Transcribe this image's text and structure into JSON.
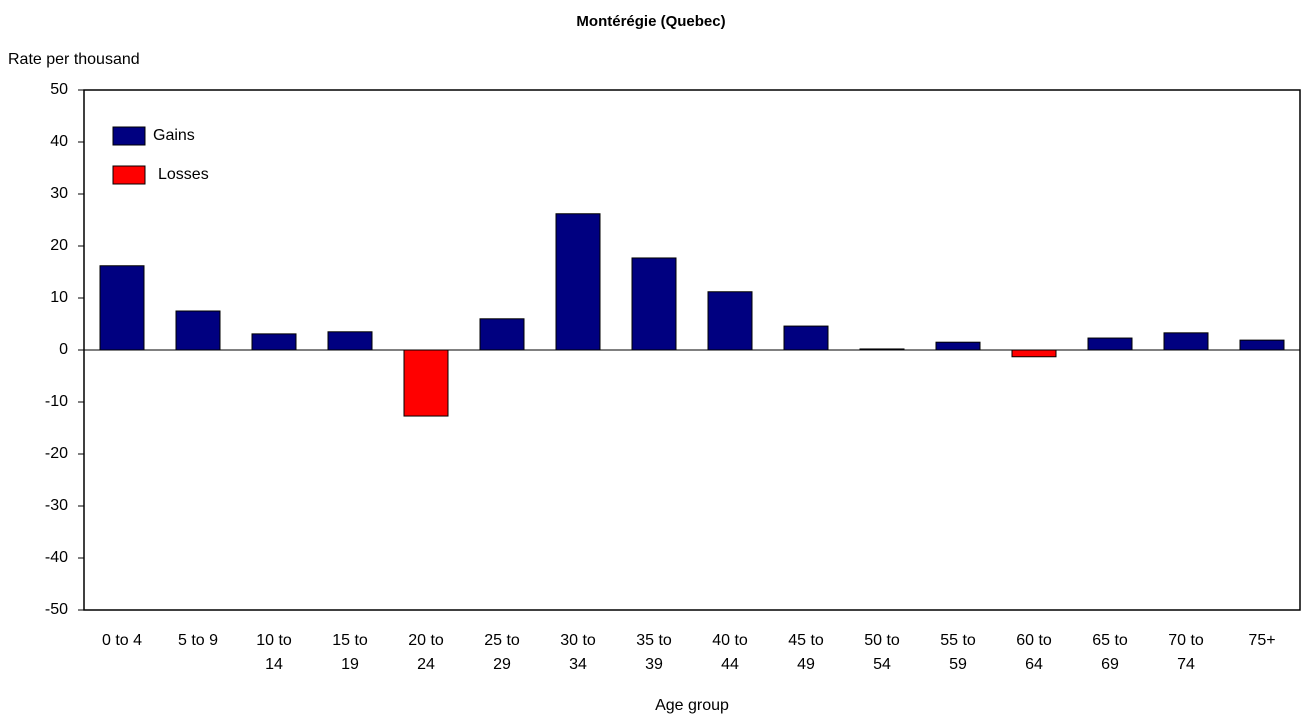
{
  "chart_data": {
    "type": "bar",
    "title": "Montérégie (Quebec)",
    "y_label": "Rate per thousand",
    "x_label": "Age group",
    "categories": [
      "0 to 4",
      "5 to 9",
      "10 to 14",
      "15 to 19",
      "20 to 24",
      "25 to 29",
      "30 to 34",
      "35 to 39",
      "40 to 44",
      "45 to 49",
      "50 to 54",
      "55 to 59",
      "60 to 64",
      "65 to 69",
      "70 to 74",
      "75+"
    ],
    "series": [
      {
        "name": "Gains",
        "color": "#000080",
        "values": [
          16.2,
          7.5,
          3.1,
          3.5,
          null,
          6.0,
          26.2,
          17.7,
          11.2,
          4.6,
          0.2,
          1.5,
          null,
          2.3,
          3.3,
          1.9
        ]
      },
      {
        "name": "Losses",
        "color": "#ff0000",
        "values": [
          null,
          null,
          null,
          null,
          -12.7,
          null,
          null,
          null,
          null,
          null,
          null,
          null,
          -1.3,
          null,
          null,
          null
        ]
      }
    ],
    "ylim": [
      -50,
      50
    ],
    "yticks": [
      -50,
      -40,
      -30,
      -20,
      -10,
      0,
      10,
      20,
      30,
      40,
      50
    ],
    "legend": "top-left"
  }
}
